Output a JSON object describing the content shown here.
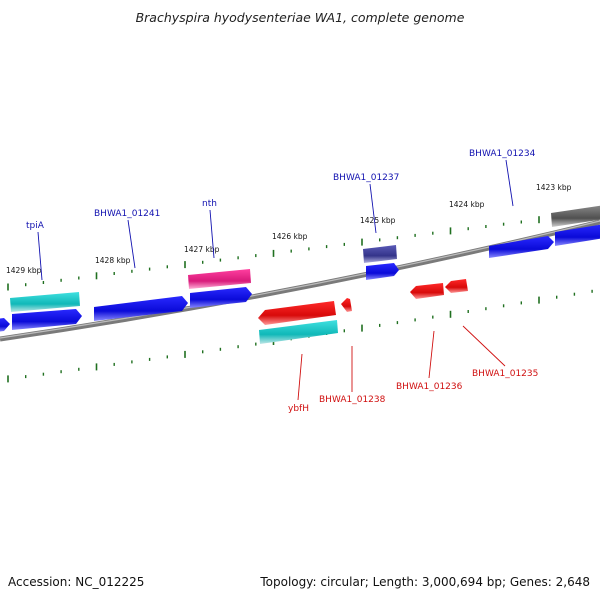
{
  "title": "Brachyspira hyodysenteriae WA1, complete genome",
  "footer": {
    "accession": "Accession: NC_012225",
    "stats": "Topology: circular; Length: 3,000,694 bp; Genes: 2,648"
  },
  "ticks": [
    "1429 kbp",
    "1428 kbp",
    "1427 kbp",
    "1426 kbp",
    "1425 kbp",
    "1424 kbp",
    "1423 kbp"
  ],
  "gene_labels_forward": [
    "tpiA",
    "BHWA1_01241",
    "nth",
    "BHWA1_01237",
    "BHWA1_01234"
  ],
  "gene_labels_reverse": [
    "ybfH",
    "BHWA1_01238",
    "BHWA1_01236",
    "BHWA1_01235"
  ],
  "colors": {
    "forward_cds": "#1010e0",
    "reverse_cds": "#e01010",
    "trna": "#20c0c0",
    "rrna": "#e0208a",
    "pseudo": "#404090",
    "other": "#606060",
    "backbone": "#808080",
    "tick": "#207020"
  }
}
